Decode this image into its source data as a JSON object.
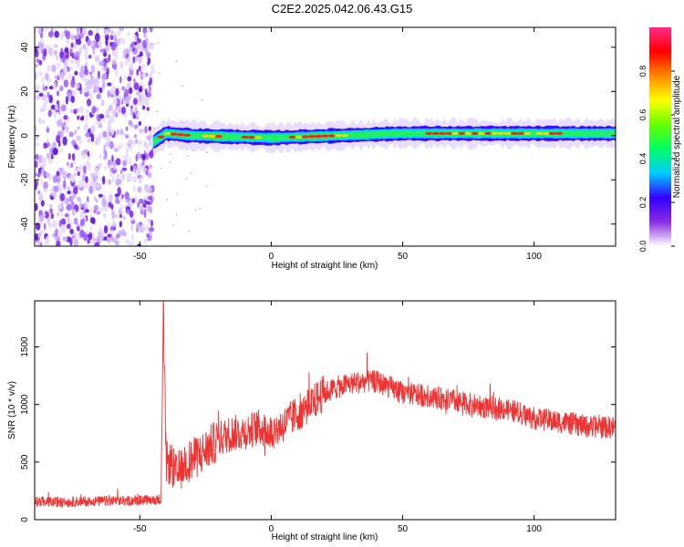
{
  "title": "C2E2.2025.042.06.43.G15",
  "chart_data": [
    {
      "type": "heatmap",
      "xlabel": "Height of straight line (km)",
      "ylabel": "Frequency (Hz)",
      "xlim": [
        -90,
        131
      ],
      "ylim": [
        -50,
        49
      ],
      "x_ticks": [
        -50,
        0,
        50,
        100
      ],
      "y_ticks": [
        -40,
        -20,
        0,
        20,
        40
      ],
      "colorbar": {
        "label": "Normalized spectral amplitude",
        "range": [
          0,
          1
        ],
        "ticks": [
          "0.0",
          "0.2",
          "0.4",
          "0.6",
          "0.8"
        ],
        "colors": [
          "#ffffff",
          "#8a2be2",
          "#3300ff",
          "#00ccff",
          "#00ff66",
          "#66ff00",
          "#ffff00",
          "#ff8800",
          "#ff0000",
          "#ff2a8a"
        ]
      },
      "noise_region_x": [
        -90,
        -45
      ],
      "signal_band": {
        "x_start": -45,
        "x_end": 131,
        "center_frequency": [
          {
            "x": -45,
            "y": -3
          },
          {
            "x": -40,
            "y": 1
          },
          {
            "x": -30,
            "y": 0
          },
          {
            "x": 0,
            "y": -1
          },
          {
            "x": 50,
            "y": 1
          },
          {
            "x": 100,
            "y": 1
          },
          {
            "x": 131,
            "y": 1
          }
        ]
      }
    },
    {
      "type": "line",
      "xlabel": "Height of straight line (km)",
      "ylabel": "SNR (10 * v/v)",
      "xlim": [
        -90,
        131
      ],
      "ylim": [
        0,
        1900
      ],
      "x_ticks": [
        -50,
        0,
        50,
        100
      ],
      "y_ticks": [
        0,
        500,
        1000,
        1500
      ],
      "grid": false,
      "series": [
        {
          "color": "#ee3333",
          "x": [
            -90,
            -80,
            -70,
            -60,
            -50,
            -44,
            -42,
            -41,
            -40,
            -38,
            -36,
            -33,
            -30,
            -25,
            -20,
            -15,
            -10,
            -5,
            0,
            5,
            10,
            15,
            20,
            25,
            30,
            35,
            40,
            45,
            50,
            60,
            70,
            80,
            90,
            100,
            110,
            120,
            131
          ],
          "y": [
            160,
            150,
            160,
            160,
            170,
            170,
            180,
            1800,
            500,
            480,
            380,
            500,
            520,
            600,
            700,
            750,
            760,
            800,
            760,
            830,
            920,
            1000,
            1100,
            1150,
            1180,
            1200,
            1200,
            1150,
            1100,
            1070,
            1030,
            980,
            960,
            880,
            850,
            810,
            800
          ]
        }
      ]
    }
  ]
}
